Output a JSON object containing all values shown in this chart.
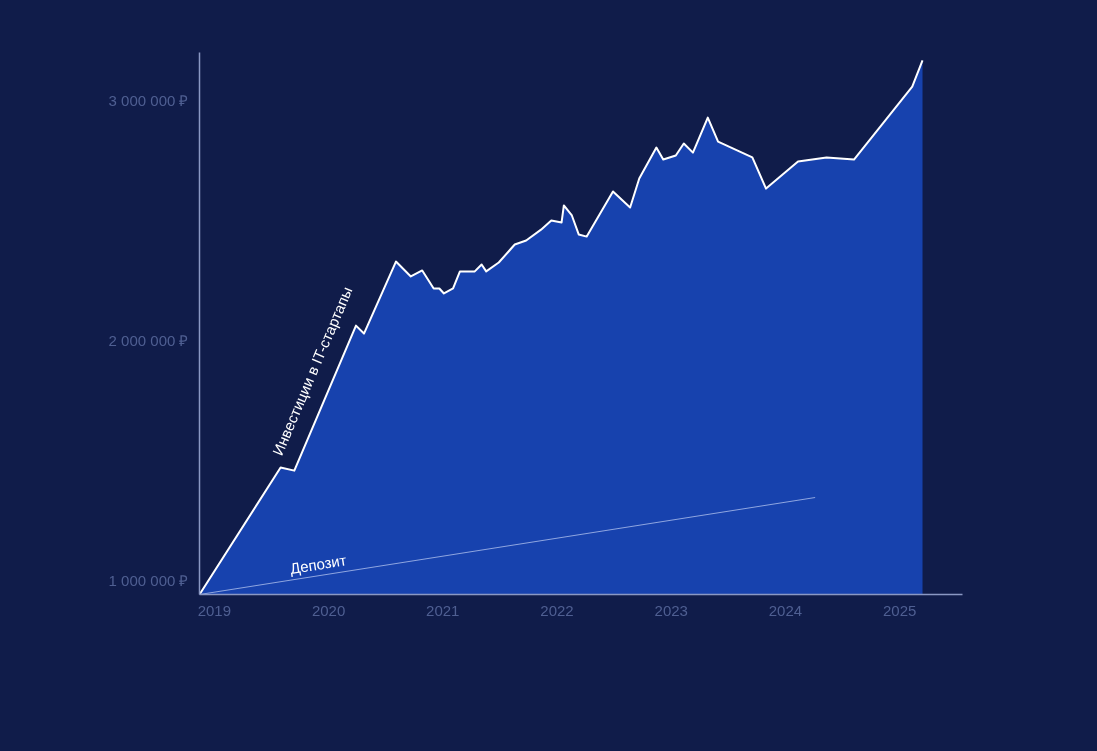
{
  "chart_data": {
    "type": "area",
    "xlim": [
      2018.87,
      2025.55
    ],
    "ylim": [
      942000,
      3200000
    ],
    "xticks": [
      2019,
      2020,
      2021,
      2022,
      2023,
      2024,
      2025
    ],
    "yticks": [
      {
        "value": 1000000,
        "label": "1 000 000 ₽"
      },
      {
        "value": 2000000,
        "label": "2 000 000 ₽"
      },
      {
        "value": 3000000,
        "label": "3 000 000 ₽"
      }
    ],
    "grid": false,
    "legend": false,
    "series": [
      {
        "name": "Инвестиции в IT-стартапы",
        "color": "#ffffff",
        "x": [
          2018.87,
          2019.58,
          2019.7,
          2020.24,
          2020.31,
          2020.59,
          2020.72,
          2020.82,
          2020.92,
          2020.97,
          2021.01,
          2021.09,
          2021.15,
          2021.28,
          2021.34,
          2021.38,
          2021.49,
          2021.63,
          2021.73,
          2021.86,
          2021.95,
          2022.04,
          2022.06,
          2022.13,
          2022.19,
          2022.26,
          2022.49,
          2022.64,
          2022.72,
          2022.87,
          2022.93,
          2023.04,
          2023.11,
          2023.19,
          2023.32,
          2023.41,
          2023.71,
          2023.83,
          2024.11,
          2024.36,
          2024.6,
          2025.11,
          2025.2
        ],
        "values": [
          942000,
          1471000,
          1458000,
          2062000,
          2029000,
          2329000,
          2267000,
          2292000,
          2217000,
          2217000,
          2196000,
          2217000,
          2288000,
          2288000,
          2317000,
          2288000,
          2325000,
          2400000,
          2417000,
          2462000,
          2500000,
          2492000,
          2563000,
          2521000,
          2442000,
          2433000,
          2621000,
          2554000,
          2675000,
          2804000,
          2754000,
          2771000,
          2821000,
          2783000,
          2929000,
          2829000,
          2763000,
          2633000,
          2746000,
          2763000,
          2754000,
          3058000,
          3167000
        ]
      },
      {
        "name": "Депозит",
        "type": "line",
        "color": "#8fa6e0",
        "x": [
          2018.87,
          2024.26
        ],
        "values": [
          942000,
          1346000
        ]
      }
    ]
  }
}
